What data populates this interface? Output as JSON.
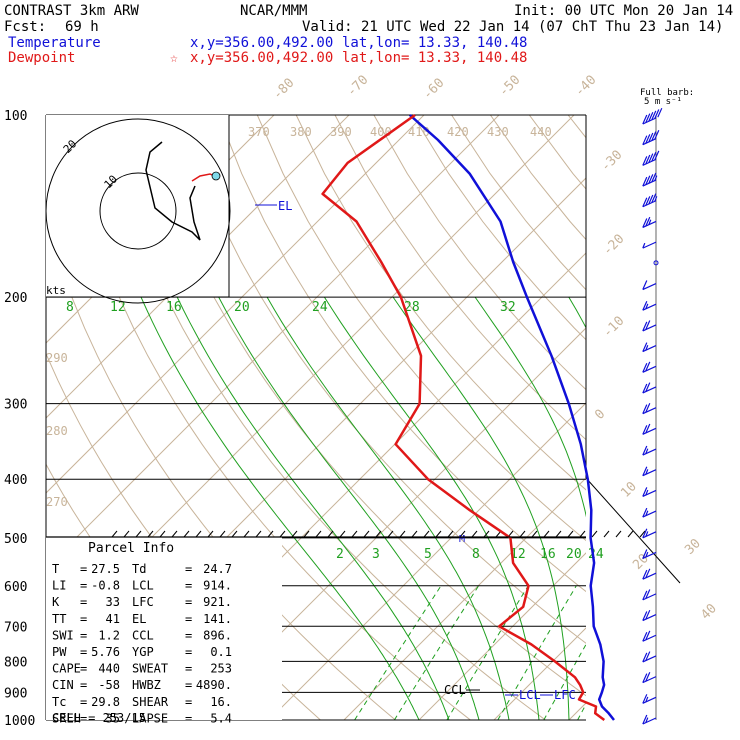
{
  "header": {
    "model": "CONTRAST  3km ARW",
    "center": "NCAR/MMM",
    "init": "Init: 00 UTC Mon 20 Jan 14",
    "fcst_label": "Fcst:",
    "fcst_value": "69 h",
    "valid": "Valid: 21 UTC Wed 22 Jan 14 (07 ChT Thu 23 Jan 14)"
  },
  "legend": {
    "temperature": {
      "label": "Temperature",
      "xy": "x,y=356.00,492.00",
      "latlon": "lat,lon= 13.33, 140.48",
      "color": "#1010d8"
    },
    "dewpoint": {
      "label": "Dewpoint",
      "marker": "☆",
      "xy": "x,y=356.00,492.00",
      "latlon": "lat,lon= 13.33, 140.48",
      "color": "#e01818"
    }
  },
  "barb_key": {
    "line1": "Full barb:",
    "line2": "5 m s⁻¹"
  },
  "hodograph": {
    "unit": "kts",
    "ring_labels": [
      "10",
      "20"
    ]
  },
  "parcel_info": {
    "title": "Parcel Info",
    "rows": [
      {
        "k1": "T",
        "v1": "27.5",
        "k2": "Td",
        "v2": "24.7"
      },
      {
        "k1": "LI",
        "v1": "-0.8",
        "k2": "LCL",
        "v2": "914."
      },
      {
        "k1": "K",
        "v1": "33",
        "k2": "LFC",
        "v2": "921."
      },
      {
        "k1": "TT",
        "v1": "41",
        "k2": "EL",
        "v2": "141."
      },
      {
        "k1": "SWI",
        "v1": "1.2",
        "k2": "CCL",
        "v2": "896."
      },
      {
        "k1": "PW",
        "v1": "5.76",
        "k2": "YGP",
        "v2": "0.1"
      },
      {
        "k1": "CAPE",
        "v1": "440",
        "k2": "SWEAT",
        "v2": "253"
      },
      {
        "k1": "CIN",
        "v1": "-58",
        "k2": "HWBZ",
        "v2": "4890."
      },
      {
        "k1": "Tc",
        "v1": "29.8",
        "k2": "SHEAR",
        "v2": "16."
      },
      {
        "k1": "SREH",
        "v1": "35",
        "k2": "LAPSE",
        "v2": "5.4"
      }
    ],
    "cell": "CELL = 253/15"
  },
  "levels": {
    "lcl": "LCL",
    "lfc": "LFC",
    "ccl": "CCL",
    "el": "EL",
    "marker": "M"
  },
  "colors": {
    "isobar": "#000000",
    "isotherm": "#c8b49a",
    "mixing_ratio": "#20a020",
    "moist_adiabat": "#20a020",
    "barb": "#1010d8"
  },
  "chart_data": {
    "type": "line",
    "title": "",
    "y_axis": {
      "label": "",
      "scale": "log",
      "range": [
        1000,
        100
      ],
      "ticks": [
        100,
        200,
        300,
        400,
        500,
        600,
        700,
        800,
        900,
        1000
      ]
    },
    "isotherm_labels": [
      "-80",
      "-70",
      "-60",
      "-50",
      "-40",
      "-30",
      "-20",
      "-10",
      "0",
      "10",
      "20",
      "30",
      "40"
    ],
    "theta_labels": [
      "370",
      "380",
      "390",
      "400",
      "410",
      "420",
      "430",
      "440",
      "290",
      "280",
      "270"
    ],
    "theta_e_labels": [
      "8",
      "12",
      "16",
      "20",
      "24",
      "28",
      "32"
    ],
    "mixing_ratio_labels": [
      "2",
      "3",
      "5",
      "8",
      "12",
      "16",
      "20",
      "24"
    ],
    "series": [
      {
        "name": "Temperature",
        "color": "#1010d8",
        "points": [
          [
            1000,
            26.0
          ],
          [
            975,
            24.4
          ],
          [
            950,
            22.6
          ],
          [
            925,
            21.3
          ],
          [
            900,
            20.7
          ],
          [
            875,
            20.0
          ],
          [
            850,
            18.8
          ],
          [
            800,
            16.8
          ],
          [
            750,
            14.1
          ],
          [
            700,
            10.8
          ],
          [
            650,
            8.1
          ],
          [
            600,
            5.0
          ],
          [
            550,
            2.4
          ],
          [
            500,
            -1.4
          ],
          [
            450,
            -5.0
          ],
          [
            400,
            -9.6
          ],
          [
            350,
            -15.2
          ],
          [
            300,
            -22.2
          ],
          [
            250,
            -30.9
          ],
          [
            200,
            -42.0
          ],
          [
            175,
            -48.5
          ],
          [
            150,
            -55.6
          ],
          [
            125,
            -66.1
          ],
          [
            110,
            -74.8
          ],
          [
            100,
            -81.9
          ]
        ]
      },
      {
        "name": "Dewpoint",
        "color": "#e01818",
        "points": [
          [
            1000,
            24.7
          ],
          [
            975,
            22.6
          ],
          [
            950,
            21.8
          ],
          [
            925,
            18.6
          ],
          [
            900,
            18.2
          ],
          [
            875,
            16.8
          ],
          [
            850,
            15.1
          ],
          [
            800,
            10.3
          ],
          [
            750,
            4.9
          ],
          [
            700,
            -1.8
          ],
          [
            650,
            -1.2
          ],
          [
            600,
            -3.3
          ],
          [
            550,
            -8.4
          ],
          [
            500,
            -12.1
          ],
          [
            450,
            -21.2
          ],
          [
            400,
            -30.9
          ],
          [
            350,
            -39.9
          ],
          [
            300,
            -42.1
          ],
          [
            250,
            -48.3
          ],
          [
            200,
            -58.8
          ],
          [
            175,
            -66.1
          ],
          [
            150,
            -74.8
          ],
          [
            135,
            -83.0
          ],
          [
            120,
            -83.8
          ],
          [
            100,
            -81.2
          ]
        ]
      }
    ],
    "wind_barbs": [
      "60",
      "50",
      "50",
      "45",
      "45",
      "25",
      "5",
      "0",
      "10",
      "15",
      "20",
      "15",
      "20",
      "20",
      "20",
      "20",
      "15",
      "15",
      "15",
      "15",
      "15",
      "15",
      "20",
      "20",
      "20",
      "20",
      "20",
      "20",
      "15",
      "15"
    ]
  }
}
